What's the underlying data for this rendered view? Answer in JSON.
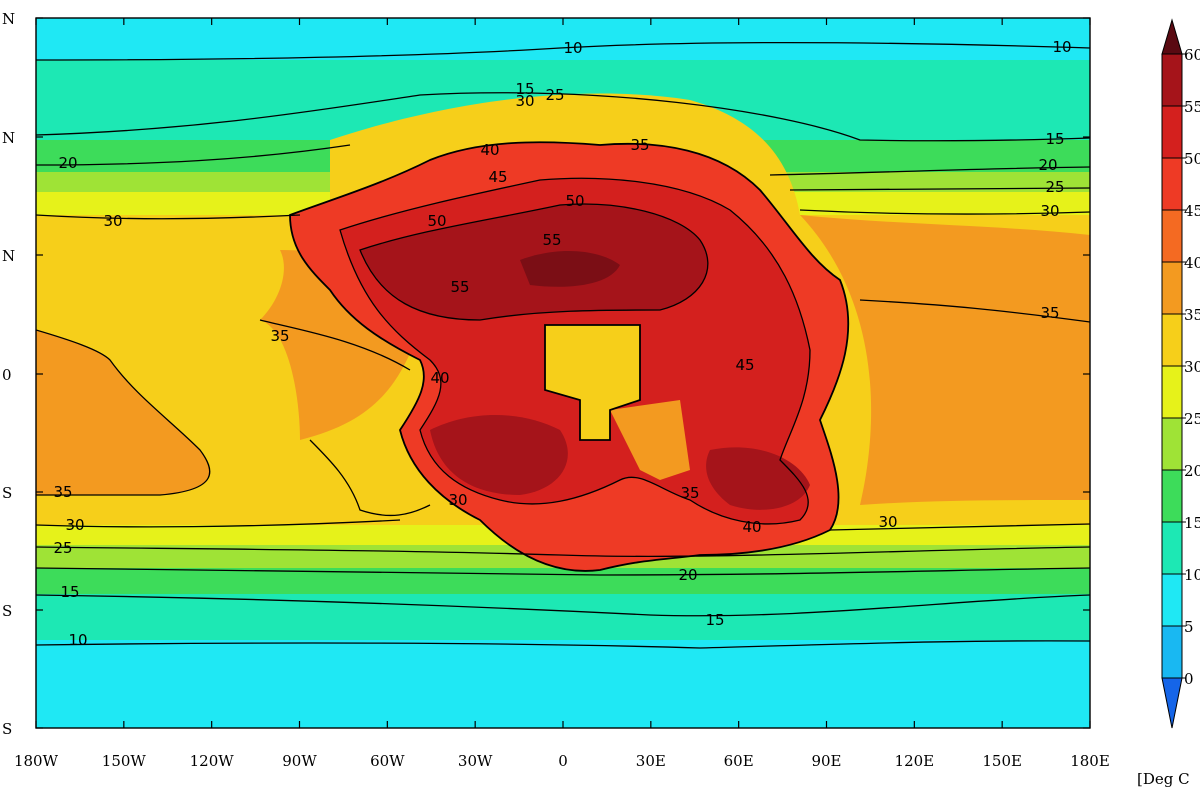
{
  "map": {
    "lon_labels": [
      "180W",
      "150W",
      "120W",
      "90W",
      "60W",
      "30W",
      "0",
      "30E",
      "60E",
      "90E",
      "120E",
      "150E",
      "180E"
    ],
    "lat_labels": [
      "N",
      "N",
      "N",
      "0",
      "S",
      "S",
      "S"
    ],
    "contour_labels": [
      "10",
      "10",
      "15",
      "15",
      "20",
      "20",
      "25",
      "25",
      "30",
      "30",
      "30",
      "35",
      "35",
      "35",
      "45",
      "50",
      "50",
      "55",
      "55",
      "40",
      "30",
      "35",
      "15",
      "20",
      "10",
      "15",
      "30",
      "40",
      "25",
      "35",
      "45",
      "40",
      "30"
    ]
  },
  "colorbar": {
    "tick_labels": [
      "60",
      "55",
      "50",
      "45",
      "40",
      "35",
      "30",
      "25",
      "20",
      "15",
      "10",
      "5",
      "0"
    ],
    "colors": [
      "#5a0a12",
      "#a5141a",
      "#d4201e",
      "#ee3a25",
      "#f46a22",
      "#f39a20",
      "#f6cf1a",
      "#e6f21a",
      "#9fe336",
      "#3ddc5a",
      "#1de8b4",
      "#1fe8f4",
      "#19b8f2",
      "#1565e8"
    ],
    "units": "[Deg C"
  }
}
